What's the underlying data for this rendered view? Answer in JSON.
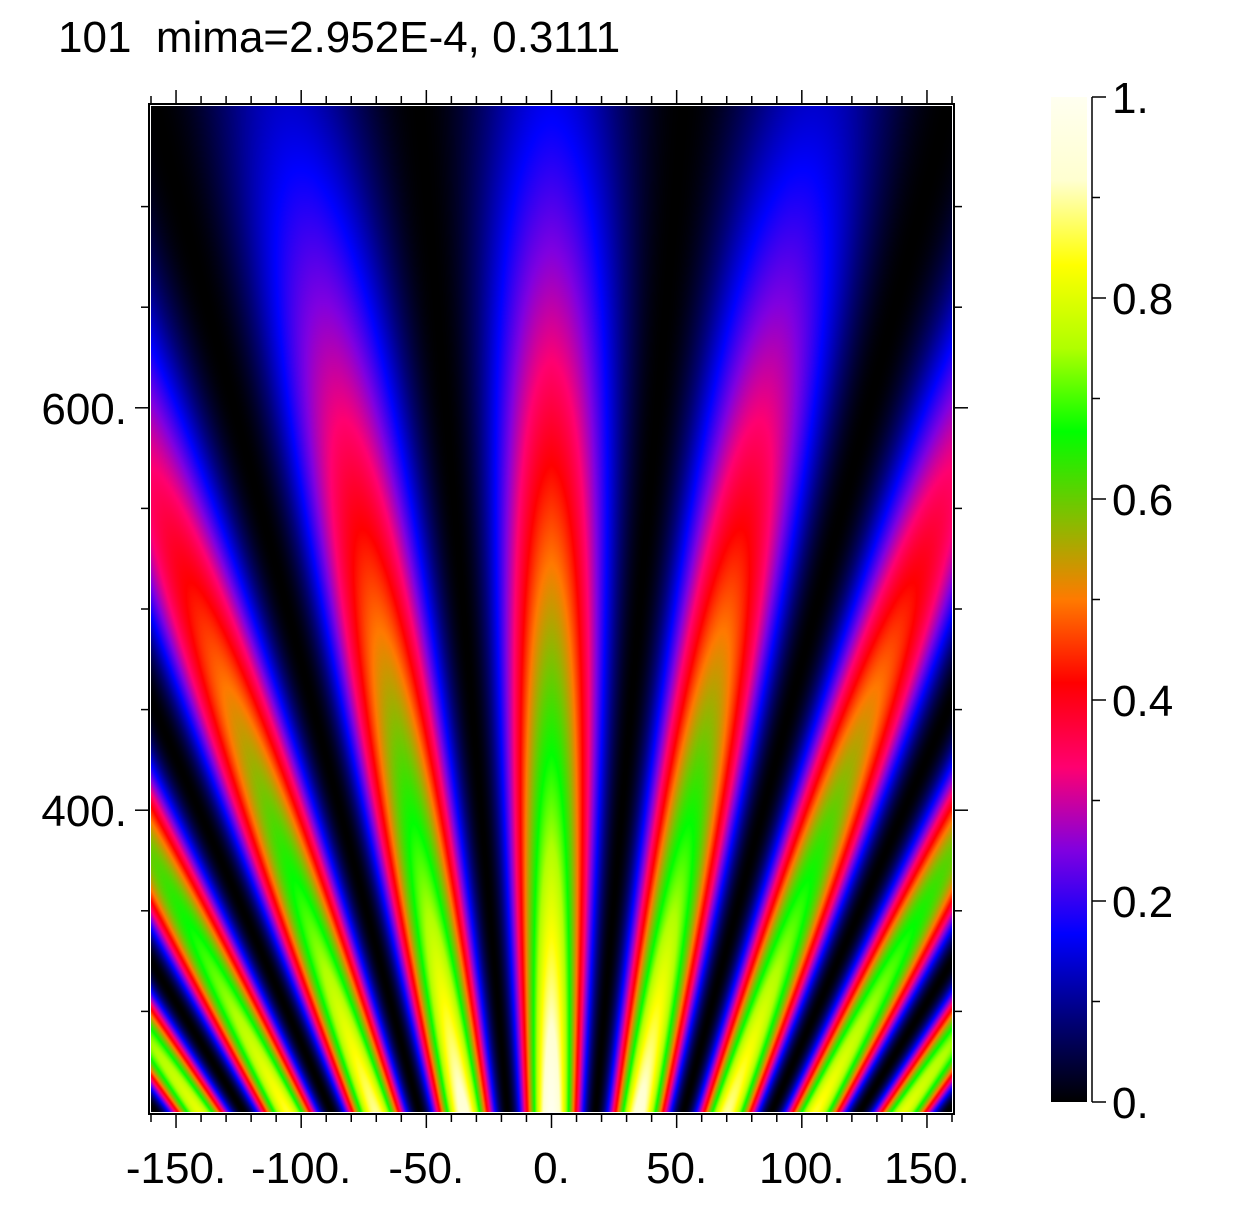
{
  "title": "101  mima=2.952E-4, 0.3111",
  "chart_data": {
    "type": "heatmap",
    "title": "101  mima=2.952E-4, 0.3111",
    "xlabel": "",
    "ylabel": "",
    "xlim": [
      -160,
      160
    ],
    "ylim": [
      250,
      750
    ],
    "x_ticks": [
      -150,
      -100,
      -50,
      0,
      50,
      100,
      150
    ],
    "x_tick_labels": [
      "-150.",
      "-100.",
      "-50.",
      "0.",
      "50.",
      "100.",
      "150."
    ],
    "y_ticks": [
      400,
      600
    ],
    "y_tick_labels": [
      "400.",
      "600."
    ],
    "z_range": [
      0,
      1
    ],
    "colorbar_ticks": [
      0,
      0.2,
      0.4,
      0.6,
      0.8,
      1
    ],
    "colorbar_tick_labels": [
      "0.",
      "0.2",
      "0.4",
      "0.6",
      "0.8",
      "1."
    ],
    "colormap": [
      "#000000",
      "#00007a",
      "#0000ff",
      "#8000e0",
      "#ff0070",
      "#ff0000",
      "#ff7a00",
      "#80c000",
      "#00ff00",
      "#b0ff00",
      "#ffff00",
      "#ffffd0",
      "#fffff0"
    ],
    "pattern": "radial fan of alternating bright/dark fringes converging toward x=0 at the bottom; intensity highest near bottom center (yellow/green), decreasing toward top (blue/purple)"
  }
}
